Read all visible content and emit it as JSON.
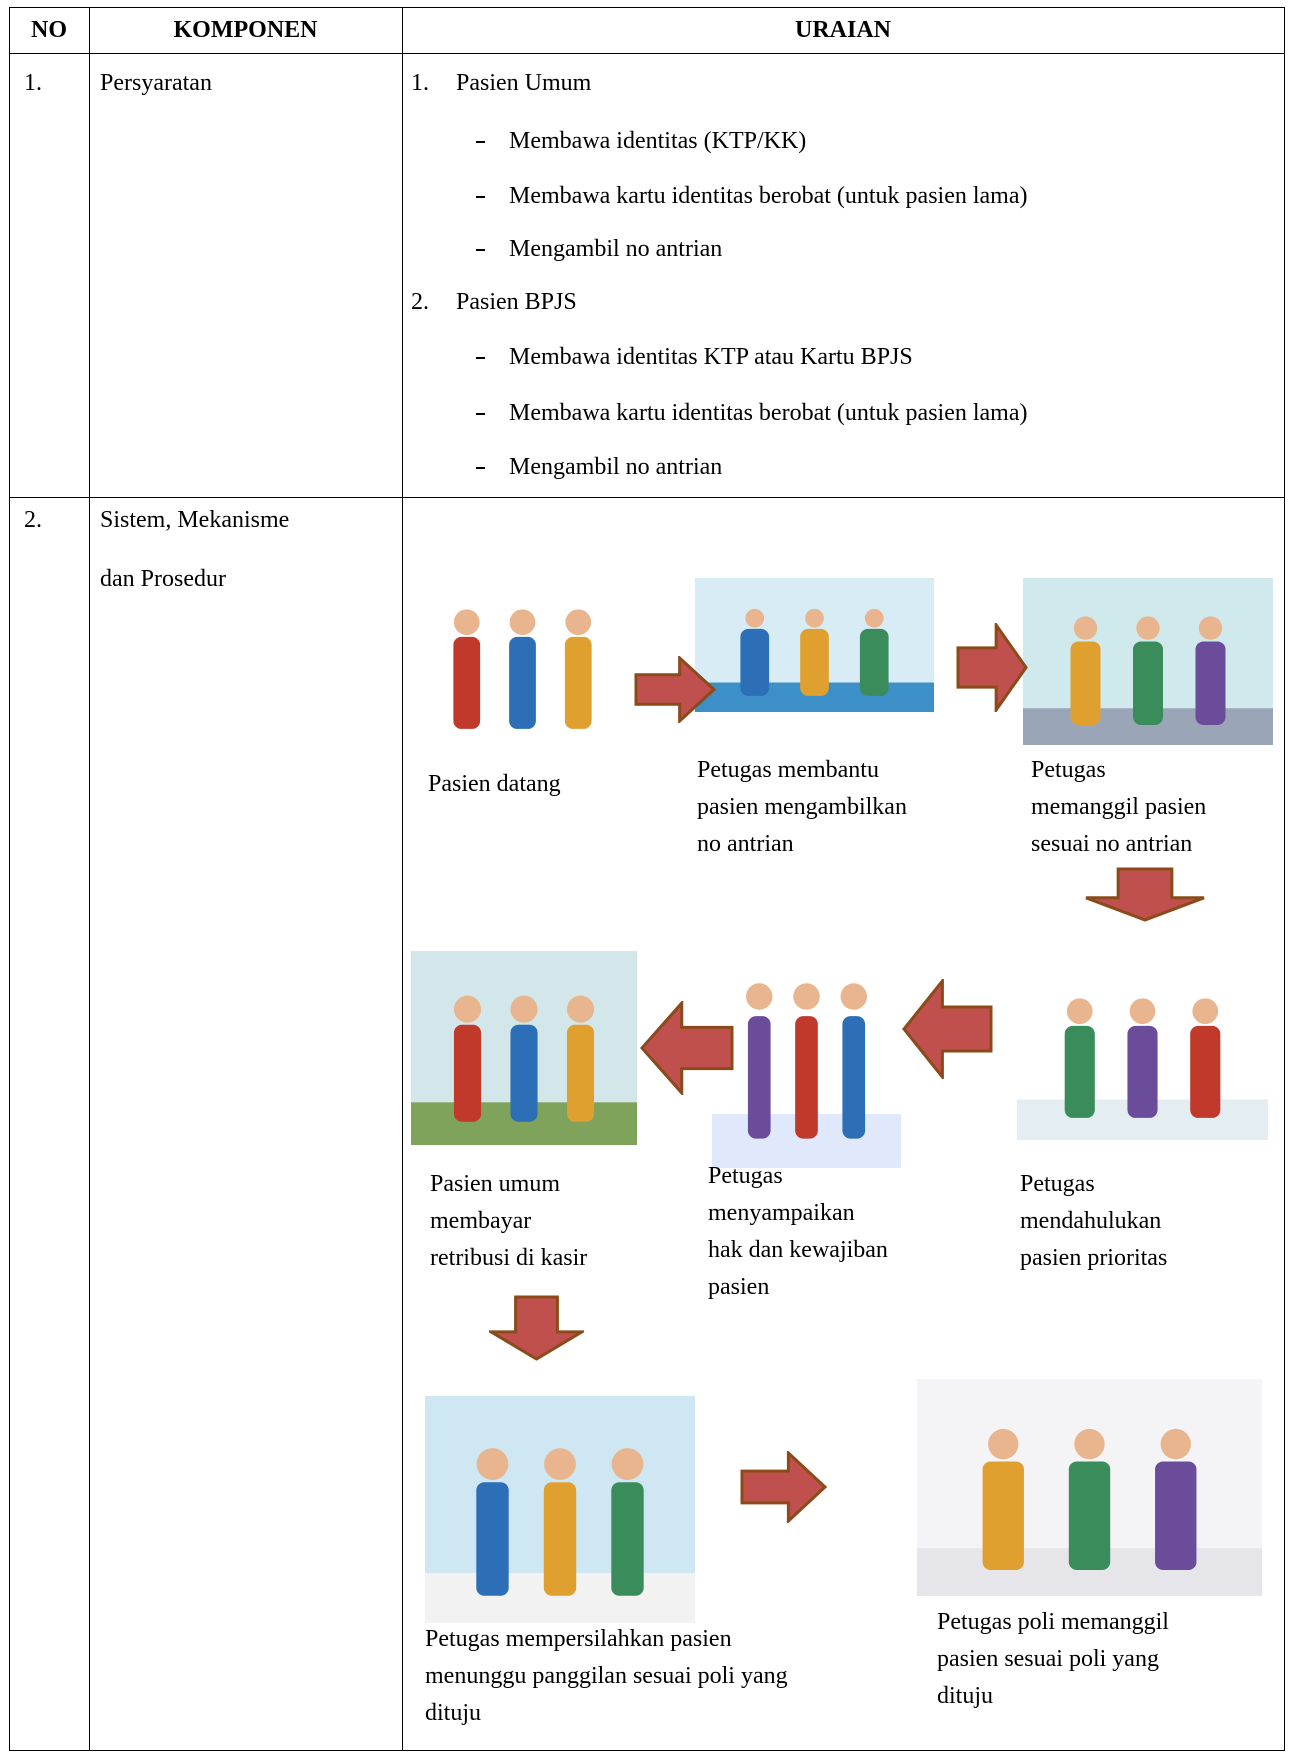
{
  "table": {
    "header": {
      "no": "NO",
      "component": "KOMPONEN",
      "description": "URAIAN"
    },
    "rows": [
      {
        "no": "1.",
        "component": [
          "Persyaratan"
        ],
        "groups": [
          {
            "number": "1.",
            "title": "Pasien Umum",
            "items": [
              "Membawa identitas (KTP/KK)",
              "Membawa kartu identitas berobat (untuk pasien lama)",
              "Mengambil no antrian"
            ]
          },
          {
            "number": "2.",
            "title": "Pasien BPJS",
            "items": [
              "Membawa identitas KTP atau Kartu BPJS",
              "Membawa kartu identitas berobat (untuk pasien lama)",
              "Mengambil no antrian"
            ]
          }
        ]
      },
      {
        "no": "2.",
        "component": [
          "Sistem, Mekanisme",
          "dan Prosedur"
        ],
        "flow": [
          {
            "caption": [
              "Pasien datang"
            ]
          },
          {
            "caption": [
              "Petugas membantu",
              "pasien mengambilkan",
              "no antrian"
            ]
          },
          {
            "caption": [
              "Petugas",
              "memanggil pasien",
              "sesuai no antrian"
            ]
          },
          {
            "caption": [
              "Petugas",
              "mendahulukan",
              "pasien prioritas"
            ]
          },
          {
            "caption": [
              "Petugas",
              "menyampaikan",
              "hak dan kewajiban",
              "pasien"
            ]
          },
          {
            "caption": [
              "Pasien umum",
              "membayar",
              "retribusi di kasir"
            ]
          },
          {
            "caption": [
              "Petugas mempersilahkan pasien",
              "menunggu panggilan sesuai poli yang",
              "dituju"
            ]
          },
          {
            "caption": [
              "Petugas poli memanggil",
              "pasien sesuai poli yang",
              "dituju"
            ]
          }
        ]
      }
    ]
  }
}
